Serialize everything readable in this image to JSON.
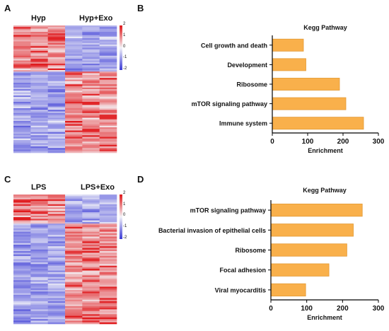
{
  "panels": {
    "A": {
      "letter": "A",
      "col_labels": [
        "Hyp",
        "Hyp+Exo"
      ],
      "colorbar_ticks": [
        "2",
        "1",
        "0",
        "-1",
        "-2"
      ]
    },
    "B": {
      "letter": "B"
    },
    "C": {
      "letter": "C",
      "col_labels": [
        "LPS",
        "LPS+Exo"
      ],
      "colorbar_ticks": [
        "2",
        "1",
        "0",
        "-1",
        "-2"
      ]
    },
    "D": {
      "letter": "D"
    }
  },
  "colors": {
    "bar_fill": "#f9b04b",
    "bar_stroke": "#e39a35",
    "heat_high": "#e0191c",
    "heat_mid": "#f4f4f8",
    "heat_low": "#3b3bd6"
  },
  "chart_data": [
    {
      "type": "heatmap",
      "panel": "A",
      "columns": [
        "Hyp",
        "Hyp+Exo"
      ],
      "samples_per_group": 3,
      "pattern": "top rows high in Hyp and low in Hyp+Exo; lower rows low in Hyp and high in Hyp+Exo",
      "colorbar_range": [
        -2,
        2
      ]
    },
    {
      "type": "bar",
      "orientation": "horizontal",
      "panel": "B",
      "title": "Kegg Pathway",
      "xlabel": "Enrichment",
      "ylabel": "",
      "categories": [
        "Cell growth and death",
        "Development",
        "Ribosome",
        "mTOR signaling pathway",
        "Immune system"
      ],
      "values": [
        88,
        95,
        190,
        208,
        258
      ],
      "xlim": [
        0,
        300
      ],
      "xticks": [
        "0",
        "100",
        "200",
        "300"
      ]
    },
    {
      "type": "heatmap",
      "panel": "C",
      "columns": [
        "LPS",
        "LPS+Exo"
      ],
      "samples_per_group": 3,
      "pattern": "top rows high in LPS and low in LPS+Exo; lower rows low in LPS and high in LPS+Exo",
      "colorbar_range": [
        -2,
        2
      ]
    },
    {
      "type": "bar",
      "orientation": "horizontal",
      "panel": "D",
      "title": "Kegg Pathway",
      "xlabel": "Enrichment",
      "ylabel": "",
      "categories": [
        "mTOR signaling pathway",
        "Bacterial invasion of epithelial cells",
        "Ribosome",
        "Focal adhesion",
        "Viral myocarditis"
      ],
      "values": [
        255,
        230,
        212,
        162,
        97
      ],
      "xlim": [
        0,
        300
      ],
      "xticks": [
        "0",
        "100",
        "200",
        "300"
      ]
    }
  ]
}
